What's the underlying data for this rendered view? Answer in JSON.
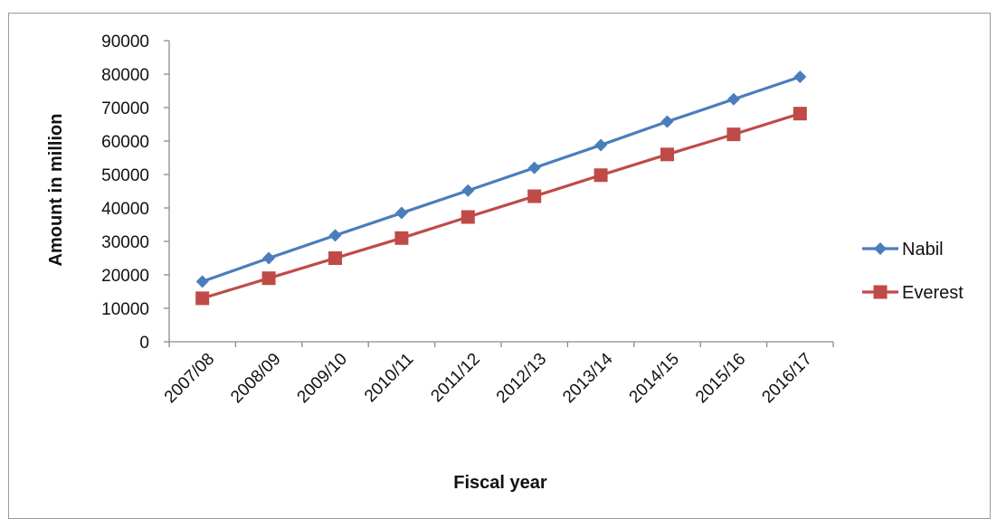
{
  "chart_data": {
    "type": "line",
    "title": "",
    "xlabel": "Fiscal year",
    "ylabel": "Amount in million",
    "categories": [
      "2007/08",
      "2008/09",
      "2009/10",
      "2010/11",
      "2011/12",
      "2012/13",
      "2013/14",
      "2014/15",
      "2015/16",
      "2016/17"
    ],
    "yticks": [
      "0",
      "10000",
      "20000",
      "30000",
      "40000",
      "50000",
      "60000",
      "70000",
      "80000",
      "90000"
    ],
    "ylim": [
      0,
      90000
    ],
    "grid": false,
    "legend_position": "right",
    "series": [
      {
        "name": "Nabil",
        "color": "#4a7ebb",
        "marker": "diamond",
        "values": [
          18000,
          25000,
          31800,
          38500,
          45200,
          52000,
          58800,
          65800,
          72500,
          79200
        ]
      },
      {
        "name": "Everest",
        "color": "#be4b48",
        "marker": "square",
        "values": [
          13000,
          19000,
          25000,
          31000,
          37300,
          43500,
          49800,
          56000,
          62000,
          68200
        ]
      }
    ]
  }
}
